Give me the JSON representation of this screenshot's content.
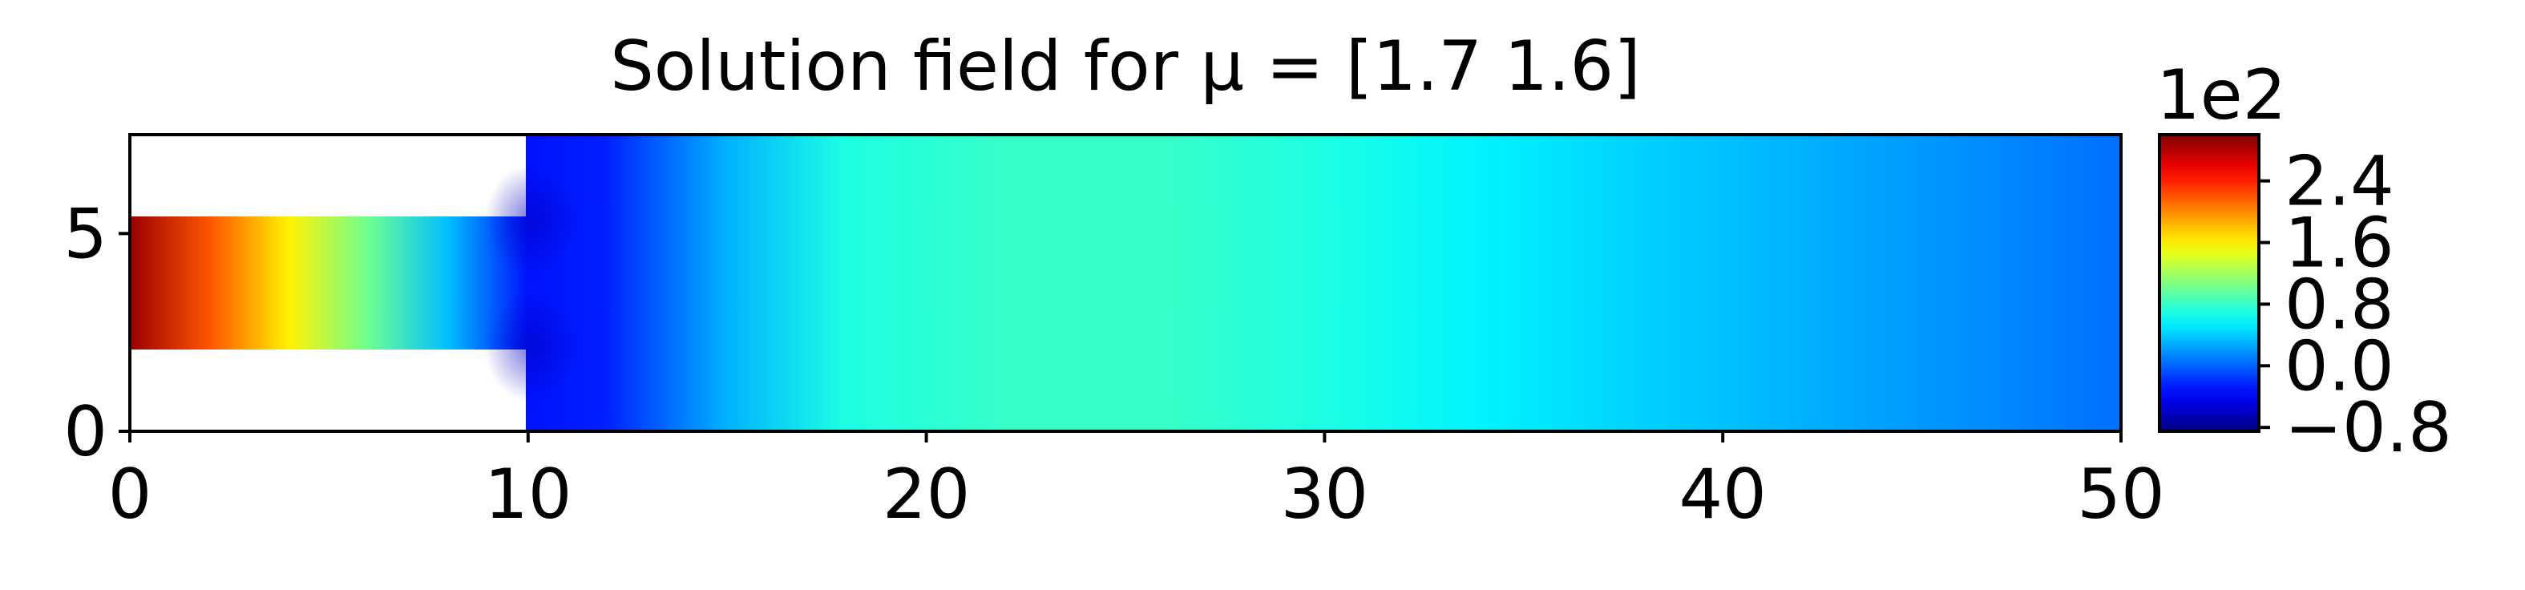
{
  "chart_data": {
    "type": "heatmap",
    "title": "Solution field for μ = [1.7 1.6]",
    "xlabel": "",
    "ylabel": "",
    "xlim": [
      0,
      50
    ],
    "ylim": [
      0,
      7.5
    ],
    "xticks": [
      "0",
      "10",
      "20",
      "30",
      "40",
      "50"
    ],
    "yticks": [
      "0",
      "5"
    ],
    "domain": {
      "inlet_channel": {
        "x": [
          0,
          10
        ],
        "y": [
          2,
          5.5
        ]
      },
      "main_chamber": {
        "x": [
          10,
          50
        ],
        "y": [
          0,
          7.5
        ]
      }
    },
    "field_profile_x": [
      0,
      2,
      4,
      6,
      8,
      10,
      12,
      15,
      18,
      22,
      26,
      30,
      34,
      38,
      42,
      46,
      50
    ],
    "field_profile_values": [
      2.9,
      2.2,
      1.6,
      1.0,
      0.35,
      -0.3,
      -0.25,
      0.3,
      0.7,
      0.8,
      0.8,
      0.7,
      0.55,
      0.42,
      0.3,
      0.18,
      0.05
    ],
    "colorbar": {
      "colormap": "jet",
      "min": -0.85,
      "max": 3.0,
      "scale_label": "1e2",
      "ticks": [
        2.4,
        1.6,
        0.8,
        0.0,
        -0.8
      ],
      "tick_labels": [
        "2.4",
        "1.6",
        "0.8",
        "0.0",
        "−0.8"
      ]
    }
  }
}
